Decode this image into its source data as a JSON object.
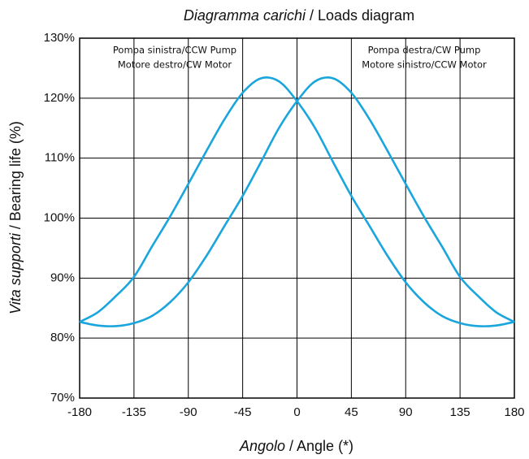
{
  "chart_data": {
    "type": "line",
    "title": {
      "italic": "Diagramma carichi",
      "plain": "/ Loads diagram"
    },
    "x_label": {
      "italic": "Angolo",
      "plain": "/ Angle (*)"
    },
    "y_label": {
      "italic": "Vita supporti",
      "plain": "/ Bearing life (%)"
    },
    "annotations": {
      "left": [
        "Pompa sinistra/CCW Pump",
        "Motore destro/CW Motor"
      ],
      "right": [
        "Pompa destra/CW Pump",
        "Motore sinistro/CCW Motor"
      ]
    },
    "x": [
      -180,
      -165,
      -150,
      -135,
      -120,
      -105,
      -90,
      -75,
      -60,
      -45,
      -30,
      -15,
      0,
      15,
      30,
      45,
      60,
      75,
      90,
      105,
      120,
      135,
      150,
      165,
      180
    ],
    "series": [
      {
        "color": "#1aa6dc",
        "values": [
          82.7,
          84.3,
          87,
          90.2,
          95.3,
          100.3,
          105.7,
          111.2,
          116.5,
          120.9,
          123.3,
          122.8,
          119.5,
          115,
          109.3,
          103.7,
          98.7,
          93.7,
          89.3,
          86,
          83.7,
          82.5,
          82,
          82.1,
          82.7
        ]
      },
      {
        "color": "#1aa6dc",
        "values": [
          82.7,
          82.1,
          82,
          82.5,
          83.7,
          86,
          89.3,
          93.7,
          98.7,
          103.7,
          109.3,
          115,
          119.5,
          122.8,
          123.3,
          120.9,
          116.5,
          111.2,
          105.7,
          100.3,
          95.3,
          90.2,
          87,
          84.3,
          82.7
        ]
      }
    ],
    "xlim": [
      -180,
      180
    ],
    "xticks": [
      -180,
      -135,
      -90,
      -45,
      0,
      45,
      90,
      135,
      180
    ],
    "ylim": [
      70,
      130
    ],
    "yticks": [
      {
        "value": 70,
        "label": "70%"
      },
      {
        "value": 80,
        "label": "80%"
      },
      {
        "value": 90,
        "label": "90%"
      },
      {
        "value": 100,
        "label": "100%"
      },
      {
        "value": 110,
        "label": "110%"
      },
      {
        "value": 120,
        "label": "120%"
      },
      {
        "value": 130,
        "label": "130%"
      }
    ],
    "grid": true
  }
}
